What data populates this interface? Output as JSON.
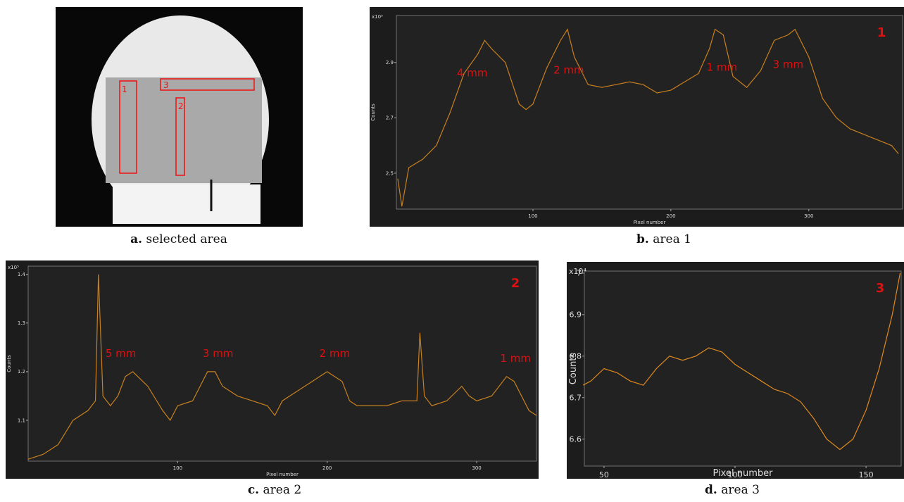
{
  "figure_a": {
    "caption_letter": "a.",
    "caption": "selected area",
    "region_labels": [
      "1",
      "2",
      "3"
    ]
  },
  "chart_data": [
    {
      "type": "line",
      "caption_letter": "b.",
      "caption": "area 1",
      "panel_number": "1",
      "xlabel": "Pixel number",
      "ylabel": "Counts",
      "multiplier": "x10⁵",
      "color": "#c8801e",
      "x": [
        2,
        5,
        10,
        20,
        30,
        40,
        50,
        60,
        65,
        70,
        80,
        90,
        95,
        100,
        110,
        120,
        125,
        130,
        140,
        150,
        160,
        170,
        180,
        190,
        200,
        210,
        220,
        228,
        232,
        238,
        245,
        255,
        265,
        275,
        285,
        290,
        300,
        310,
        320,
        330,
        340,
        350,
        360,
        365
      ],
      "values": [
        2.48,
        2.38,
        2.52,
        2.55,
        2.6,
        2.72,
        2.86,
        2.93,
        2.98,
        2.95,
        2.9,
        2.75,
        2.73,
        2.75,
        2.88,
        2.98,
        3.02,
        2.92,
        2.82,
        2.81,
        2.82,
        2.83,
        2.82,
        2.79,
        2.8,
        2.83,
        2.86,
        2.95,
        3.02,
        3.0,
        2.85,
        2.81,
        2.87,
        2.98,
        3.0,
        3.02,
        2.92,
        2.77,
        2.7,
        2.66,
        2.64,
        2.62,
        2.6,
        2.57
      ],
      "xlim": [
        1,
        368
      ],
      "ylim": [
        2.37,
        3.07
      ],
      "xticks": [
        100,
        200,
        300
      ],
      "yticks": [
        2.5,
        2.7,
        2.9
      ],
      "annotations": [
        {
          "text": "4 mm",
          "x": 56,
          "y": 2.85
        },
        {
          "text": "2 mm",
          "x": 126,
          "y": 2.86
        },
        {
          "text": "1 mm",
          "x": 237,
          "y": 2.87
        },
        {
          "text": "3 mm",
          "x": 285,
          "y": 2.88
        }
      ]
    },
    {
      "type": "line",
      "caption_letter": "c.",
      "caption": "area 2",
      "panel_number": "2",
      "xlabel": "Pixel number",
      "ylabel": "Counts",
      "multiplier": "x10⁵",
      "color": "#c8801e",
      "x": [
        0,
        10,
        20,
        30,
        40,
        45,
        47,
        50,
        55,
        60,
        65,
        70,
        80,
        90,
        95,
        100,
        110,
        115,
        120,
        125,
        130,
        140,
        150,
        160,
        165,
        170,
        180,
        190,
        200,
        210,
        215,
        220,
        230,
        240,
        250,
        260,
        262,
        265,
        270,
        280,
        290,
        295,
        300,
        310,
        320,
        325,
        330,
        335,
        340
      ],
      "values": [
        1.02,
        1.03,
        1.05,
        1.1,
        1.12,
        1.14,
        1.4,
        1.15,
        1.13,
        1.15,
        1.19,
        1.2,
        1.17,
        1.12,
        1.1,
        1.13,
        1.14,
        1.17,
        1.2,
        1.2,
        1.17,
        1.15,
        1.14,
        1.13,
        1.11,
        1.14,
        1.16,
        1.18,
        1.2,
        1.18,
        1.14,
        1.13,
        1.13,
        1.13,
        1.14,
        1.14,
        1.28,
        1.15,
        1.13,
        1.14,
        1.17,
        1.15,
        1.14,
        1.15,
        1.19,
        1.18,
        1.15,
        1.12,
        1.11
      ],
      "xlim": [
        0,
        340
      ],
      "ylim": [
        1.016,
        1.417
      ],
      "xticks": [
        100,
        200,
        300
      ],
      "yticks": [
        1.1,
        1.2,
        1.3,
        1.4
      ],
      "annotations": [
        {
          "text": "5 mm",
          "x": 62,
          "y": 1.23
        },
        {
          "text": "3 mm",
          "x": 127,
          "y": 1.23
        },
        {
          "text": "2 mm",
          "x": 205,
          "y": 1.23
        },
        {
          "text": "1 mm",
          "x": 326,
          "y": 1.22
        }
      ]
    },
    {
      "type": "line",
      "caption_letter": "d.",
      "caption": "area 3",
      "panel_number": "3",
      "xlabel": "Pixel number",
      "ylabel": "Counts",
      "multiplier": "x10⁴",
      "color": "#e08a1e",
      "x": [
        42,
        45,
        50,
        55,
        60,
        65,
        70,
        75,
        80,
        85,
        90,
        95,
        100,
        105,
        110,
        115,
        120,
        125,
        130,
        135,
        140,
        145,
        150,
        155,
        160,
        163
      ],
      "values": [
        6.73,
        6.74,
        6.77,
        6.76,
        6.74,
        6.73,
        6.77,
        6.8,
        6.79,
        6.8,
        6.82,
        6.81,
        6.78,
        6.76,
        6.74,
        6.72,
        6.71,
        6.69,
        6.65,
        6.6,
        6.575,
        6.6,
        6.67,
        6.77,
        6.9,
        7.0
      ],
      "xlim": [
        42.5,
        163.4
      ],
      "ylim": [
        6.535,
        7.005
      ],
      "xticks": [
        50,
        100,
        150
      ],
      "yticks": [
        6.6,
        6.7,
        6.8,
        6.9,
        7
      ]
    }
  ]
}
